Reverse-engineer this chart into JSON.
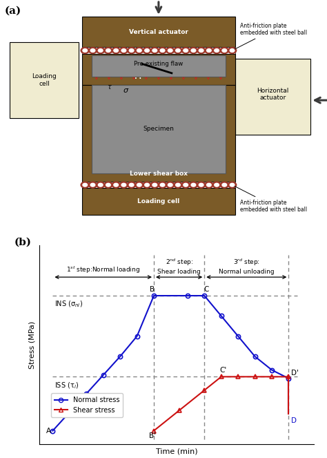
{
  "fig_width": 4.74,
  "fig_height": 6.63,
  "dpi": 100,
  "panel_a_label": "(a)",
  "panel_b_label": "(b)",
  "colors": {
    "dark_brown": "#7B5B28",
    "light_tan": "#F0ECD0",
    "gray_specimen": "#8C8C8C",
    "steel_ball_red": "#A0392B",
    "arrow_dark": "#3a3a3a",
    "red_arrow_stress": "#CC2222",
    "blue_line": "#1111CC",
    "red_line": "#CC1111",
    "dashed_gray": "#888888"
  },
  "ins_label": "INS (σ$_{ni}$)",
  "iss_label": "ISS (τ$_i$)",
  "ylabel": "Stress (MPa)",
  "xlabel": "Time (min)",
  "step1_label": "1$^{st}$ step:Normal loading",
  "step2_label_l1": "2$^{nd}$ step:",
  "step2_label_l2": "Shear loading",
  "step3_label_l1": "3$^{rd}$ step:",
  "step3_label_l2": "Normal unloading",
  "legend_normal": "Normal stress",
  "legend_shear": "Shear stress"
}
